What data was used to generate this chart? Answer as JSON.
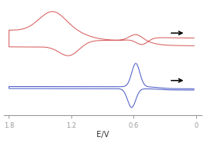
{
  "xlabel": "E/V",
  "xlim": [
    1.85,
    -0.05
  ],
  "red_color": "#d96060",
  "blue_color": "#5060c8",
  "background_color": "#ffffff",
  "xticks": [
    1.8,
    1.2,
    0.6,
    0.0
  ],
  "xticklabels": [
    "1.8",
    "1.2",
    "0.6",
    "0"
  ],
  "tick_color": "#999999",
  "spine_color": "#999999"
}
